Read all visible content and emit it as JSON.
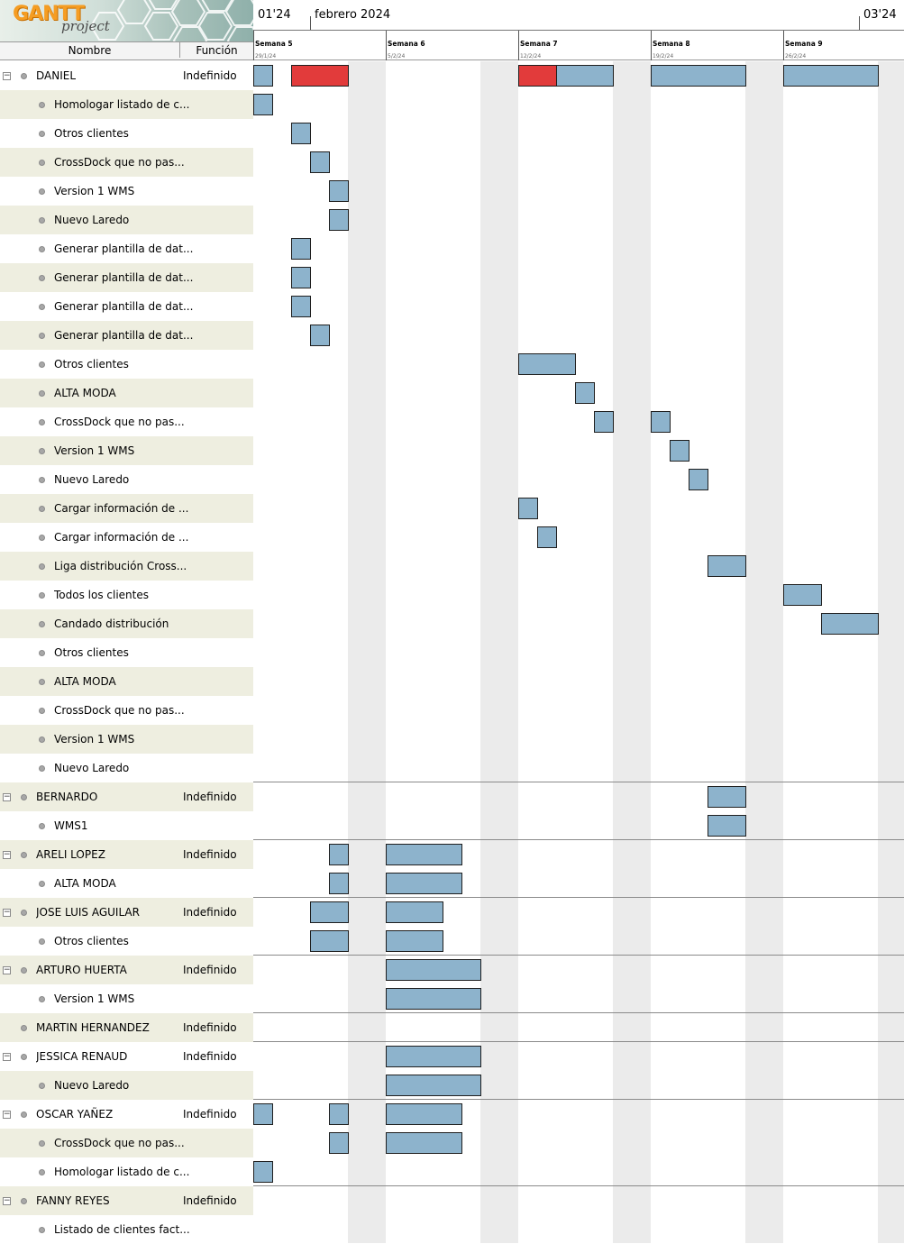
{
  "app": {
    "logo_word": "GANTT",
    "logo_sub": "project"
  },
  "columns": {
    "name": "Nombre",
    "role": "Función"
  },
  "timeline": {
    "month_labels": [
      {
        "text": "01'24",
        "day": 0
      },
      {
        "text": "febrero 2024",
        "day": 3
      },
      {
        "text": "03'24",
        "day": 32
      }
    ],
    "weeks": [
      {
        "label": "Semana 5",
        "date": "29/1/24"
      },
      {
        "label": "Semana 6",
        "date": "5/2/24"
      },
      {
        "label": "Semana 7",
        "date": "12/2/24"
      },
      {
        "label": "Semana 8",
        "date": "19/2/24"
      },
      {
        "label": "Semana 9",
        "date": "26/2/24"
      }
    ]
  },
  "colors": {
    "task": "#8db3cc",
    "critical": "#e23b3b",
    "weekend": "#ebebeb",
    "row_alt": "#eeeee0"
  },
  "resources": [
    {
      "name": "DANIEL",
      "role": "Indefinido",
      "level": 0,
      "toggle": "⊟",
      "bars": [
        [
          0,
          1,
          "task"
        ],
        [
          2,
          5,
          "critical"
        ],
        [
          14,
          16,
          "critical"
        ],
        [
          16,
          19,
          "task"
        ],
        [
          21,
          26,
          "task"
        ],
        [
          28,
          33,
          "task"
        ]
      ]
    },
    {
      "name": "Homologar listado de c...",
      "level": 1,
      "bars": [
        [
          0,
          1,
          "task"
        ]
      ]
    },
    {
      "name": "Otros clientes",
      "level": 1,
      "bars": [
        [
          2,
          3,
          "task"
        ]
      ]
    },
    {
      "name": "CrossDock que no pas...",
      "level": 1,
      "bars": [
        [
          3,
          4,
          "task"
        ]
      ]
    },
    {
      "name": "Version 1 WMS",
      "level": 1,
      "bars": [
        [
          4,
          5,
          "task"
        ]
      ]
    },
    {
      "name": "Nuevo Laredo",
      "level": 1,
      "bars": [
        [
          4,
          5,
          "task"
        ]
      ]
    },
    {
      "name": "Generar plantilla de dat...",
      "level": 1,
      "bars": [
        [
          2,
          3,
          "task"
        ]
      ]
    },
    {
      "name": "Generar plantilla de dat...",
      "level": 1,
      "bars": [
        [
          2,
          3,
          "task"
        ]
      ]
    },
    {
      "name": "Generar plantilla de dat...",
      "level": 1,
      "bars": [
        [
          2,
          3,
          "task"
        ]
      ]
    },
    {
      "name": "Generar plantilla de dat...",
      "level": 1,
      "bars": [
        [
          3,
          4,
          "task"
        ]
      ]
    },
    {
      "name": "Otros clientes",
      "level": 1,
      "bars": [
        [
          14,
          17,
          "task"
        ]
      ]
    },
    {
      "name": "ALTA MODA",
      "level": 1,
      "bars": [
        [
          17,
          18,
          "task"
        ]
      ]
    },
    {
      "name": "CrossDock que no pas...",
      "level": 1,
      "bars": [
        [
          18,
          19,
          "task"
        ],
        [
          21,
          22,
          "task"
        ]
      ]
    },
    {
      "name": "Version 1 WMS",
      "level": 1,
      "bars": [
        [
          22,
          23,
          "task"
        ]
      ]
    },
    {
      "name": "Nuevo Laredo",
      "level": 1,
      "bars": [
        [
          23,
          24,
          "task"
        ]
      ]
    },
    {
      "name": "Cargar información de ...",
      "level": 1,
      "bars": [
        [
          14,
          15,
          "task"
        ]
      ]
    },
    {
      "name": "Cargar información de ...",
      "level": 1,
      "bars": [
        [
          15,
          16,
          "task"
        ]
      ]
    },
    {
      "name": "Liga distribución Cross...",
      "level": 1,
      "bars": [
        [
          24,
          26,
          "task"
        ]
      ]
    },
    {
      "name": "Todos los clientes",
      "level": 1,
      "bars": [
        [
          28,
          30,
          "task"
        ]
      ]
    },
    {
      "name": "Candado distribución",
      "level": 1,
      "bars": [
        [
          30,
          33,
          "task"
        ]
      ]
    },
    {
      "name": "Otros clientes",
      "level": 1,
      "bars": []
    },
    {
      "name": "ALTA MODA",
      "level": 1,
      "bars": []
    },
    {
      "name": "CrossDock que no pas...",
      "level": 1,
      "bars": []
    },
    {
      "name": "Version 1 WMS",
      "level": 1,
      "bars": []
    },
    {
      "name": "Nuevo Laredo",
      "level": 1,
      "bars": []
    },
    {
      "name": "BERNARDO",
      "role": "Indefinido",
      "level": 0,
      "toggle": "⊟",
      "bars": [
        [
          24,
          26,
          "task"
        ]
      ]
    },
    {
      "name": "WMS1",
      "level": 1,
      "bars": [
        [
          24,
          26,
          "task"
        ]
      ]
    },
    {
      "name": "ARELI LOPEZ",
      "role": "Indefinido",
      "level": 0,
      "toggle": "⊟",
      "bars": [
        [
          4,
          5,
          "task"
        ],
        [
          7,
          11,
          "task"
        ]
      ]
    },
    {
      "name": "ALTA MODA",
      "level": 1,
      "bars": [
        [
          4,
          5,
          "task"
        ],
        [
          7,
          11,
          "task"
        ]
      ]
    },
    {
      "name": "JOSE LUIS AGUILAR",
      "role": "Indefinido",
      "level": 0,
      "toggle": "⊟",
      "bars": [
        [
          3,
          5,
          "task"
        ],
        [
          7,
          10,
          "task"
        ]
      ]
    },
    {
      "name": "Otros clientes",
      "level": 1,
      "bars": [
        [
          3,
          5,
          "task"
        ],
        [
          7,
          10,
          "task"
        ]
      ]
    },
    {
      "name": "ARTURO HUERTA",
      "role": "Indefinido",
      "level": 0,
      "toggle": "⊟",
      "bars": [
        [
          7,
          12,
          "task"
        ]
      ]
    },
    {
      "name": "Version 1 WMS",
      "level": 1,
      "bars": [
        [
          7,
          12,
          "task"
        ]
      ]
    },
    {
      "name": "MARTIN HERNANDEZ",
      "role": "Indefinido",
      "level": 0,
      "toggle": "",
      "bars": []
    },
    {
      "name": "JESSICA RENAUD",
      "role": "Indefinido",
      "level": 0,
      "toggle": "⊟",
      "bars": [
        [
          7,
          12,
          "task"
        ]
      ]
    },
    {
      "name": "Nuevo Laredo",
      "level": 1,
      "bars": [
        [
          7,
          12,
          "task"
        ]
      ]
    },
    {
      "name": "OSCAR YAÑEZ",
      "role": "Indefinido",
      "level": 0,
      "toggle": "⊟",
      "bars": [
        [
          0,
          1,
          "task"
        ],
        [
          4,
          5,
          "task"
        ],
        [
          7,
          11,
          "task"
        ]
      ]
    },
    {
      "name": "CrossDock que no pas...",
      "level": 1,
      "bars": [
        [
          4,
          5,
          "task"
        ],
        [
          7,
          11,
          "task"
        ]
      ]
    },
    {
      "name": "Homologar listado de c...",
      "level": 1,
      "bars": [
        [
          0,
          1,
          "task"
        ]
      ]
    },
    {
      "name": "FANNY REYES",
      "role": "Indefinido",
      "level": 0,
      "toggle": "⊟",
      "bars": []
    },
    {
      "name": "Listado de clientes fact...",
      "level": 1,
      "bars": []
    }
  ]
}
